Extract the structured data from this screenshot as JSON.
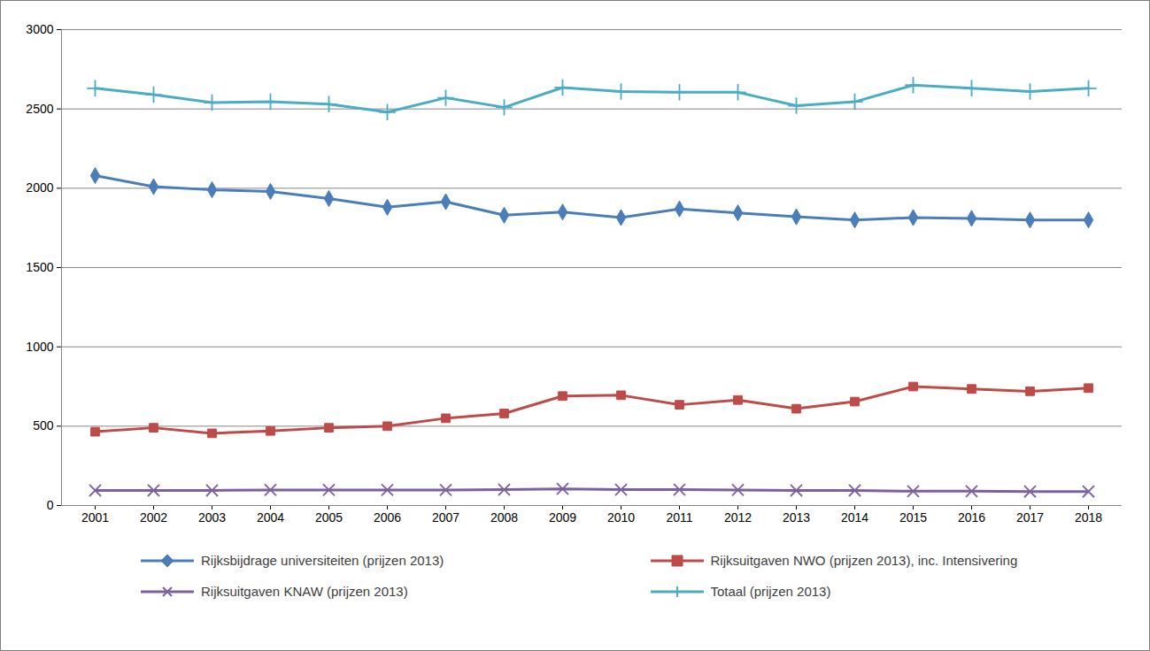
{
  "chart_data": {
    "type": "line",
    "x": [
      2001,
      2002,
      2003,
      2004,
      2005,
      2006,
      2007,
      2008,
      2009,
      2010,
      2011,
      2012,
      2013,
      2014,
      2015,
      2016,
      2017,
      2018
    ],
    "ylim": [
      0,
      3000
    ],
    "yticks": [
      0,
      500,
      1000,
      1500,
      2000,
      2500,
      3000
    ],
    "grid": true,
    "legend": "bottom",
    "series": [
      {
        "name": "Rijksbijdrage universiteiten (prijzen 2013)",
        "color": "#4a7ebb",
        "marker": "diamond",
        "values": [
          2080,
          2010,
          1990,
          1980,
          1935,
          1880,
          1915,
          1830,
          1850,
          1815,
          1870,
          1845,
          1820,
          1800,
          1815,
          1810,
          1800,
          1800
        ]
      },
      {
        "name": "Rijksuitgaven NWO (prijzen 2013), inc. Intensivering",
        "color": "#be4b48",
        "marker": "square",
        "values": [
          465,
          490,
          455,
          470,
          490,
          500,
          550,
          580,
          690,
          695,
          635,
          665,
          610,
          655,
          750,
          735,
          720,
          740
        ]
      },
      {
        "name": "Rijksuitgaven KNAW (prijzen 2013)",
        "color": "#7d60a0",
        "marker": "times",
        "values": [
          95,
          95,
          95,
          98,
          98,
          98,
          98,
          100,
          105,
          100,
          100,
          98,
          95,
          95,
          90,
          90,
          88,
          88
        ]
      },
      {
        "name": "Totaal (prijzen 2013)",
        "color": "#4bacc6",
        "marker": "plus",
        "values": [
          2630,
          2590,
          2540,
          2545,
          2530,
          2480,
          2570,
          2510,
          2635,
          2610,
          2605,
          2605,
          2520,
          2545,
          2650,
          2630,
          2610,
          2630
        ]
      }
    ]
  }
}
